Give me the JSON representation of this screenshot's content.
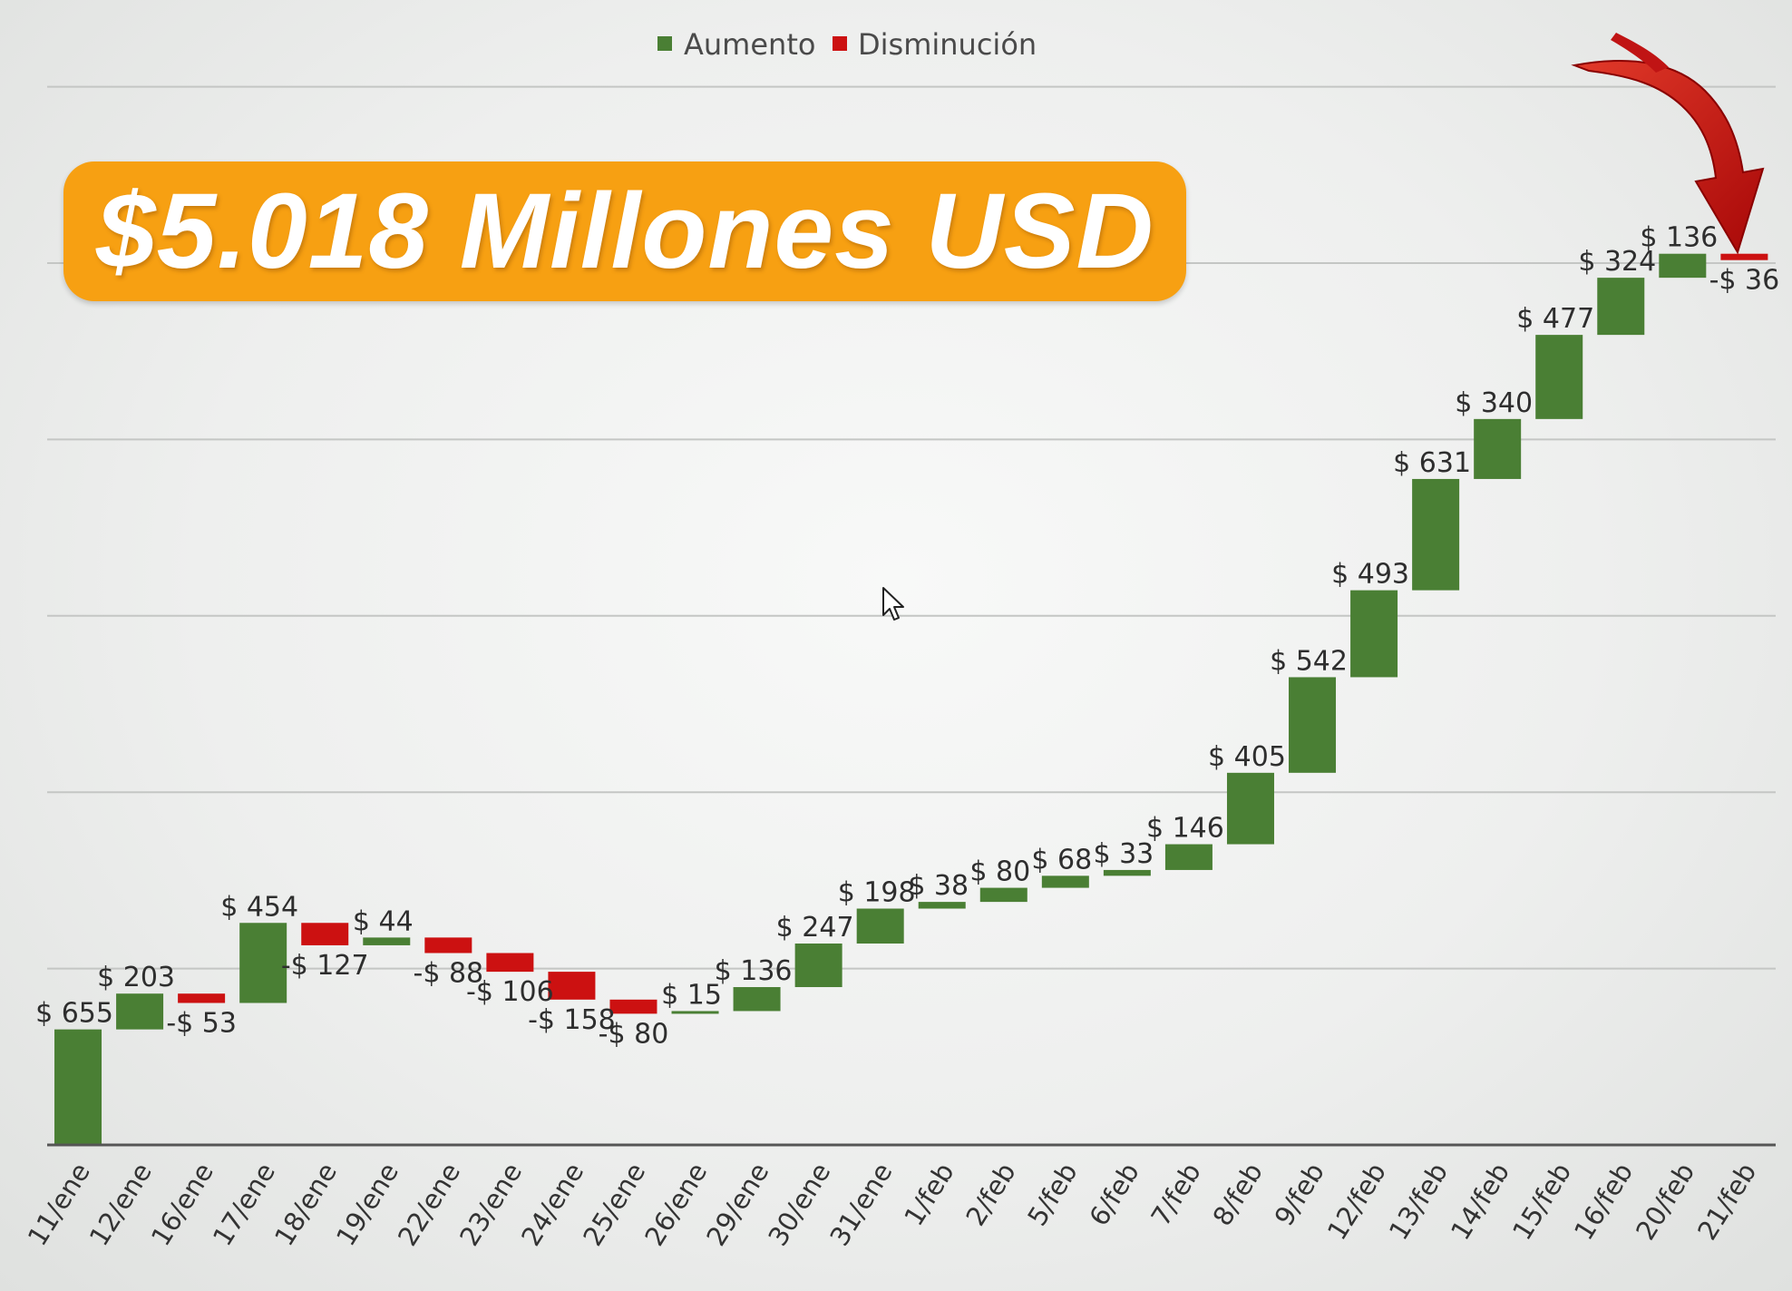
{
  "banner": {
    "text": "$5.018 Millones USD"
  },
  "legend": {
    "items": [
      {
        "label": "Aumento",
        "color": "#4a7f34"
      },
      {
        "label": "Disminución",
        "color": "#cc1111"
      }
    ],
    "position": "top-center"
  },
  "icons": {
    "cursor": "mouse-pointer-icon",
    "arrow": "curved-red-arrow-icon"
  },
  "chart_data": {
    "type": "waterfall",
    "title": "",
    "xlabel": "",
    "ylabel": "",
    "ylim": [
      0,
      5700
    ],
    "grid": true,
    "gridline_values": [
      1000,
      2000,
      3000,
      4000,
      5000,
      6000
    ],
    "increase_color": "#4a7f34",
    "decrease_color": "#cc1111",
    "categories": [
      "11/ene",
      "12/ene",
      "16/ene",
      "17/ene",
      "18/ene",
      "19/ene",
      "22/ene",
      "23/ene",
      "24/ene",
      "25/ene",
      "26/ene",
      "29/ene",
      "30/ene",
      "31/ene",
      "1/feb",
      "2/feb",
      "5/feb",
      "6/feb",
      "7/feb",
      "8/feb",
      "9/feb",
      "12/feb",
      "13/feb",
      "14/feb",
      "15/feb",
      "16/feb",
      "20/feb",
      "21/feb"
    ],
    "values": [
      655,
      203,
      -53,
      454,
      -127,
      44,
      -88,
      -106,
      -158,
      -80,
      15,
      136,
      247,
      198,
      38,
      80,
      68,
      33,
      146,
      405,
      542,
      493,
      631,
      340,
      477,
      324,
      136,
      -36
    ],
    "labels": [
      "$ 655",
      "$ 203",
      "-$ 53",
      "$ 454",
      "-$ 127",
      "$ 44",
      "-$ 88",
      "-$ 106",
      "-$ 158",
      "-$ 80",
      "$ 15",
      "$ 136",
      "$ 247",
      "$ 198",
      "$ 38",
      "$ 80",
      "$ 68",
      "$ 33",
      "$ 146",
      "$ 405",
      "$ 542",
      "$ 493",
      "$ 631",
      "$ 340",
      "$ 477",
      "$ 324",
      "$ 136",
      "-$ 36"
    ]
  }
}
